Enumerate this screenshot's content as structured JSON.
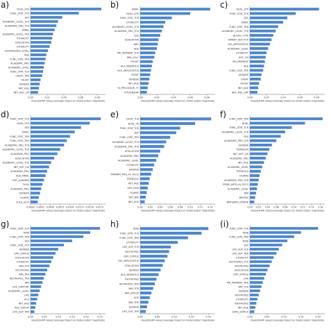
{
  "xlabel": "mean(|SHAP value|) (average impact on model output magnitude)",
  "bar_color": "#4a86d6",
  "chart_data": [
    {
      "panel": "a)",
      "type": "bar",
      "orientation": "horizontal",
      "xlabel": "mean(|SHAP value|) (average impact on model output magnitude)",
      "xticks": [
        "0.00",
        "0.02",
        "0.04",
        "0.06",
        "0.08"
      ],
      "xlim": [
        0,
        0.09
      ],
      "categories": [
        "DUAL_STR",
        "FUNC_STAT_TCR",
        "SEX",
        "ACADEMIC_LEVEL_TCR",
        "ACADEMIC_PRG_TCR",
        "EMAIL",
        "ACADEMIC_LEVEL_TRR",
        "ETHNICITY",
        "EDUCATION",
        "ETHNICITY",
        "EQUIVALENCE LEVEL",
        "AGE",
        "FUNC_STAT_TRR",
        "ACADEMIC_PRG",
        "ACADEMIC_LEVEL",
        "FUNC_STAT_TCR",
        "CREAT_TRR",
        "TXHIST",
        "GENDER",
        "INIT_AGE",
        "INIT_HGT_CM"
      ],
      "values": [
        0.085,
        0.058,
        0.038,
        0.033,
        0.031,
        0.029,
        0.027,
        0.026,
        0.025,
        0.023,
        0.021,
        0.019,
        0.018,
        0.017,
        0.016,
        0.015,
        0.014,
        0.012,
        0.011,
        0.01,
        0.009
      ]
    },
    {
      "panel": "b)",
      "type": "bar",
      "orientation": "horizontal",
      "xlabel": "mean(|SHAP value|) (average impact on model output magnitude)",
      "xticks": [
        "0.00",
        "0.02",
        "0.04",
        "0.06",
        "0.08"
      ],
      "xlim": [
        0,
        0.09
      ],
      "categories": [
        "EMAIL",
        "DUAL_STR",
        "FUNC_STAT_TCR",
        "ETHNICITY",
        "ACADEMIC_LEVEL_TCR",
        "ACADEMIC_PRG_TCR",
        "SEX",
        "EDUCATION",
        "ABO",
        "AGE",
        "PRI_PAYMENT_TCR",
        "BMI_CALC",
        "TXHIST",
        "HLA_MISMATCH",
        "HCV_SEROSTATUS",
        "CREAT",
        "GENDER",
        "INIT_AGE",
        "TX_PROCEDUR_TY",
        "CITIZENSHIP"
      ],
      "values": [
        0.084,
        0.06,
        0.038,
        0.03,
        0.028,
        0.026,
        0.024,
        0.022,
        0.021,
        0.02,
        0.018,
        0.017,
        0.015,
        0.014,
        0.013,
        0.012,
        0.011,
        0.01,
        0.009,
        0.008
      ]
    },
    {
      "panel": "c)",
      "type": "bar",
      "orientation": "horizontal",
      "xlabel": "mean(|SHAP value|) (average impact on model output magnitude)",
      "xticks": [
        "0.00",
        "0.02",
        "0.04",
        "0.06",
        "0.08"
      ],
      "xlim": [
        0,
        0.09
      ],
      "categories": [
        "DUAL_STR",
        "FUNC_STAT_TCR",
        "SEX",
        "EMAIL",
        "FUNC_STAT_TRR",
        "ACADEMIC_LEVEL_TCR",
        "BLOOD_TYPE",
        "INFANT_HEP_PCR",
        "HIV_SEROSTATUS",
        "ACADEMIC_LEVEL",
        "ETHNICITY",
        "HGT_CM",
        "PRI_PAYMENT",
        "AGE",
        "FUNC_STAT_TRR",
        "GENDER",
        "CREAT",
        "TXHIST",
        "INIT_AGE",
        "INIT_AGE_GRP"
      ],
      "values": [
        0.083,
        0.055,
        0.045,
        0.04,
        0.034,
        0.031,
        0.028,
        0.026,
        0.024,
        0.022,
        0.02,
        0.019,
        0.018,
        0.017,
        0.016,
        0.014,
        0.013,
        0.011,
        0.01,
        0.009
      ]
    },
    {
      "panel": "d)",
      "type": "bar",
      "orientation": "horizontal",
      "xlabel": "mean(|SHAP value|) (average impact on model output magnitude)",
      "xticks": [
        "0.0000",
        "0.0025",
        "0.0050",
        "0.0075",
        "0.0100",
        "0.0125",
        "0.0150",
        "0.0175"
      ],
      "xlim": [
        0,
        0.019
      ],
      "categories": [
        "FUNC_STAT_TCR",
        "DUAL_STR",
        "SEX",
        "EMAIL",
        "FUNC_STAT_TRR",
        "FUNC_STAT_TRR",
        "ACADEMIC_PRG_TCR",
        "ACADEMIC_LEVEL_TCR",
        "ACADEMIC_PRG",
        "EDUCATION",
        "ACADEMIC_LEVEL_TCR",
        "INIT_HGT_CM",
        "ACADEMIC_PRG",
        "AGE_MMHL",
        "INIT_ALBUMIN",
        "TXLIV",
        "ACADEMIC_PRG",
        "GENDER",
        "HLAMIS",
        "COLD_ISCH"
      ],
      "values": [
        0.0178,
        0.015,
        0.0128,
        0.0112,
        0.01,
        0.0092,
        0.0085,
        0.0075,
        0.0068,
        0.006,
        0.0052,
        0.0047,
        0.0042,
        0.0038,
        0.0034,
        0.003,
        0.0027,
        0.0024,
        0.0021,
        0.0018
      ]
    },
    {
      "panel": "e)",
      "type": "bar",
      "orientation": "horizontal",
      "xlabel": "mean(|SHAP value|) (average impact on model output magnitude)",
      "xticks": [
        "0.00",
        "0.02",
        "0.04",
        "0.06",
        "0.08",
        "0.10",
        "0.12",
        "0.14"
      ],
      "xlim": [
        0,
        0.15
      ],
      "categories": [
        "DUAL_TCR",
        "DUAL_TR",
        "FUNC_STAT_TCR",
        "SEX",
        "FUNC_STAT_TRR",
        "ACADEMIC_LEVEL_TCR",
        "ACADEMIC_PRG_TCR",
        "EDUCATION",
        "ACADEMIC_PRG",
        "ACADEMIC_LEVEL",
        "ETHNICITY",
        "GENDER",
        "PRIMARY_PRG_FE_PCCG",
        "TRTREQ10",
        "INIT_AGE",
        "AGE_DON",
        "HLAMIS",
        "INIT_BMI",
        "INIT_AGE"
      ],
      "values": [
        0.142,
        0.11,
        0.08,
        0.072,
        0.06,
        0.052,
        0.048,
        0.04,
        0.036,
        0.032,
        0.028,
        0.025,
        0.022,
        0.019,
        0.017,
        0.015,
        0.013,
        0.011,
        0.009
      ]
    },
    {
      "panel": "f)",
      "type": "bar",
      "orientation": "horizontal",
      "xlabel": "mean(|SHAP value|) (average impact on model output magnitude)",
      "xticks": [
        "0.00",
        "0.02",
        "0.04",
        "0.06",
        "0.08",
        "0.10",
        "0.12",
        "0.14",
        "0.16"
      ],
      "xlim": [
        0,
        0.17
      ],
      "categories": [
        "FUNC_STAT_TRR",
        "DUAL",
        "FUNC_STAT_TCR",
        "ACADEMIC_LEVEL_TCR",
        "SEX",
        "ACADEMIC_PRG_TCR",
        "GENDER",
        "TXPREQ09",
        "INIT_HGT_CM",
        "ACADEMIC_PRG",
        "INIT_AGE",
        "ACADEMIC_LEVEL",
        "TRTREQ10",
        "HLAMIS",
        "ACADEMIC_PRG_TCR",
        "PRMR_ARTD_IN_PCCG",
        "ACADEMIC_LEVEL",
        "BMI",
        "BMTMIS",
        "BMTSKIRT_DONOR"
      ],
      "values": [
        0.165,
        0.125,
        0.095,
        0.08,
        0.07,
        0.06,
        0.05,
        0.044,
        0.04,
        0.036,
        0.032,
        0.028,
        0.025,
        0.022,
        0.02,
        0.018,
        0.016,
        0.014,
        0.012,
        0.01
      ]
    },
    {
      "panel": "g)",
      "type": "bar",
      "orientation": "horizontal",
      "xlabel": "mean(|SHAP value|) (average impact on model output magnitude)",
      "xticks": [
        "0.00",
        "0.05",
        "0.10",
        "0.15",
        "0.20",
        "0.25"
      ],
      "xlim": [
        0,
        0.27
      ],
      "categories": [
        "FUNC_STAT_TCR",
        "DIAB",
        "FUNC_STAT_TRR",
        "SEX",
        "FUNC_STAT_TCR",
        "GENDER",
        "CMV_STATUS",
        "EDUCATION",
        "ETHNICITY",
        "BMI_TCR",
        "INOTROPES",
        "BMI_TRR",
        "INOTROPES_TRR",
        "BMI",
        "LIFE_SUPPORT",
        "ACADEMIC_LEVEL",
        "LIFE",
        "HCV",
        "INIT_AGE",
        "AGE_GROUP",
        "LIFE_SUP_TRR"
      ],
      "values": [
        0.25,
        0.215,
        0.19,
        0.15,
        0.12,
        0.1,
        0.09,
        0.082,
        0.075,
        0.068,
        0.06,
        0.054,
        0.048,
        0.043,
        0.038,
        0.033,
        0.028,
        0.024,
        0.02,
        0.017,
        0.014
      ]
    },
    {
      "panel": "h)",
      "type": "bar",
      "orientation": "horizontal",
      "xlabel": "mean(|SHAP value|) (average impact on model output magnitude)",
      "xticks": [
        "0.00",
        "0.05",
        "0.10",
        "0.15",
        "0.20"
      ],
      "xlim": [
        0,
        0.22
      ],
      "categories": [
        "DIAB",
        "FUNC_STAT_TCR",
        "FUNC_STAT_TRR",
        "ETHNICITY",
        "LIFE_SUP_TCR",
        "INOTROPES",
        "CMV_STATUS",
        "HIV_SEROSTATUS",
        "EDUCATION",
        "GENDER",
        "HLA_MISMATCH",
        "INOTROPES",
        "INOTROPES_TRR",
        "BMI_TCR",
        "BMI_GROUP",
        "AGE",
        "BMI_TRR",
        "GENDER",
        "LIFE_SUP_TRR"
      ],
      "values": [
        0.2,
        0.18,
        0.14,
        0.11,
        0.09,
        0.085,
        0.08,
        0.072,
        0.066,
        0.06,
        0.054,
        0.048,
        0.043,
        0.038,
        0.033,
        0.028,
        0.024,
        0.02,
        0.016
      ]
    },
    {
      "panel": "(i)",
      "type": "bar",
      "orientation": "horizontal",
      "xlabel": "mean(|SHAP value|) (average impact on model output magnitude)",
      "xticks": [
        "0.00",
        "0.05",
        "0.10",
        "0.15",
        "0.20"
      ],
      "xlim": [
        0,
        0.22
      ],
      "categories": [
        "FUNC_STAT_TCR",
        "DIAB",
        "FUNC_STAT_TRR",
        "DIAB",
        "SEX",
        "LIFE_SUP_TCR",
        "LIFE_SUP_TRR",
        "ETHNICITY",
        "INOTROPES_TCR",
        "INOTROPES",
        "EDUCATION",
        "CMV_STATUS",
        "LIFE",
        "PRI_PAYMENT_TRR",
        "BMI_TCR",
        "GENDER",
        "INOTROPES",
        "ETHNICITY",
        "INOTROPES",
        "INIT_AGE",
        "DAYS_STAT1A"
      ],
      "values": [
        0.2,
        0.15,
        0.13,
        0.11,
        0.095,
        0.085,
        0.078,
        0.07,
        0.064,
        0.058,
        0.052,
        0.047,
        0.042,
        0.038,
        0.034,
        0.03,
        0.026,
        0.022,
        0.019,
        0.016,
        0.013
      ]
    }
  ]
}
